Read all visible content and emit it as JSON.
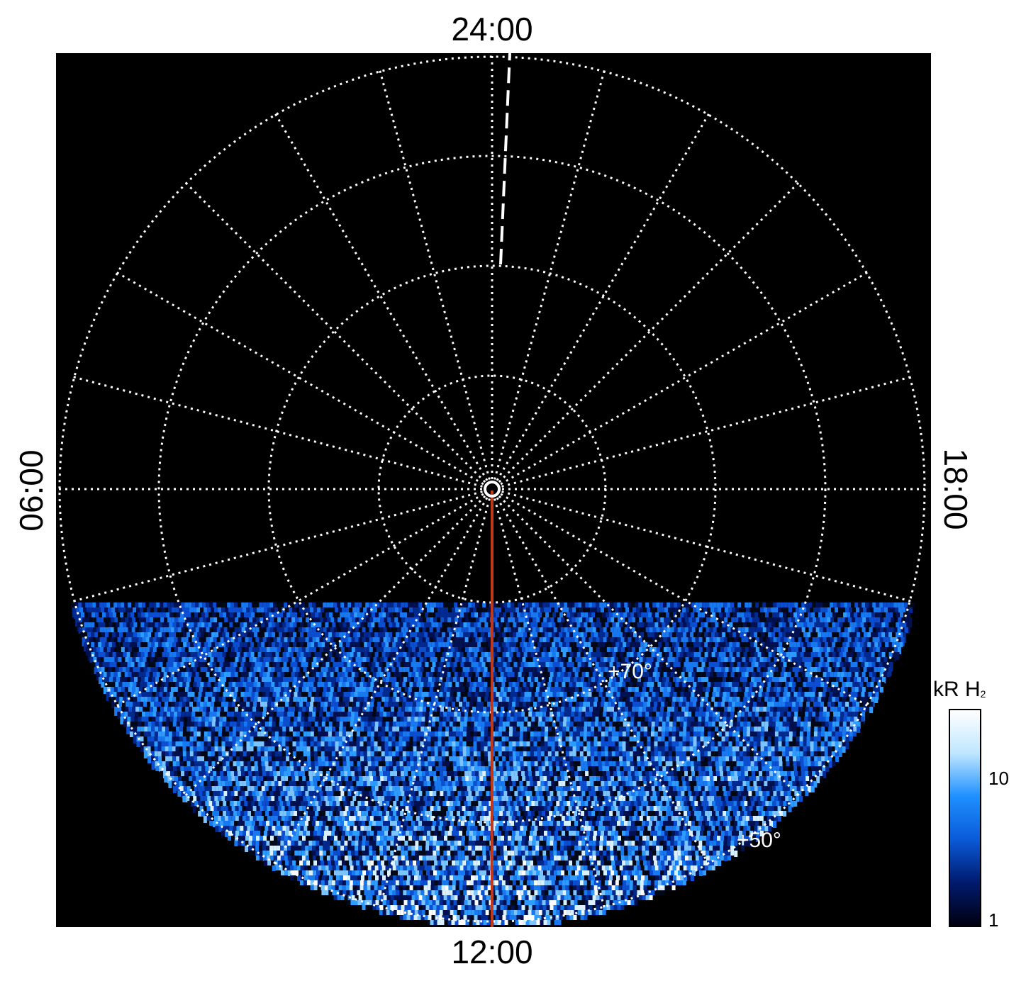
{
  "local_time_labels": {
    "top": "24:00",
    "bottom": "12:00",
    "left": "06:00",
    "right": "18:00"
  },
  "latitude_labels": [
    "+70°",
    "+50°"
  ],
  "colorbar": {
    "title": "kR H",
    "title_subscript": "2",
    "ticks": [
      "10",
      "1"
    ],
    "scale": "log",
    "colors": [
      "#000010",
      "#001a6e",
      "#0a5ad8",
      "#1e90ff",
      "#bfe6ff",
      "#ffffff"
    ]
  },
  "colors": {
    "background": "#000000",
    "grid": "#ffffff",
    "meridian_line": "#c0391b"
  }
}
